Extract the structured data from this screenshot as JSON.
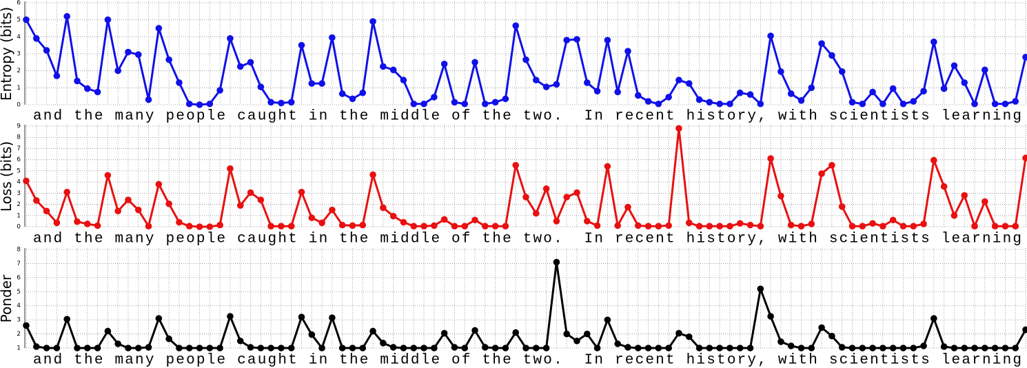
{
  "chart_data": [
    {
      "type": "line",
      "ylabel": "Entropy (bits)",
      "xlabel": "and the many people caught in the middle of the two.  In recent history, with scientists learning",
      "color": "#1010e8",
      "ylim": [
        0,
        6
      ],
      "yticks": [
        0,
        1,
        2,
        3,
        4,
        5,
        6
      ],
      "grid": true,
      "values": [
        5.0,
        3.9,
        3.2,
        1.7,
        5.2,
        1.4,
        0.95,
        0.75,
        5.0,
        2.0,
        3.1,
        2.95,
        0.3,
        4.5,
        2.65,
        1.3,
        0.05,
        0.0,
        0.05,
        0.85,
        3.9,
        2.25,
        2.5,
        1.05,
        0.15,
        0.1,
        0.15,
        3.5,
        1.25,
        1.25,
        3.95,
        0.65,
        0.35,
        0.7,
        4.9,
        2.25,
        2.05,
        1.45,
        0.05,
        0.05,
        0.45,
        2.4,
        0.15,
        0.05,
        2.5,
        0.05,
        0.15,
        0.35,
        4.65,
        2.65,
        1.45,
        1.05,
        1.2,
        3.8,
        3.85,
        1.3,
        0.8,
        3.8,
        0.75,
        3.15,
        0.55,
        0.2,
        0.05,
        0.45,
        1.45,
        1.25,
        0.3,
        0.15,
        0.05,
        0.05,
        0.7,
        0.6,
        0.05,
        4.05,
        1.95,
        0.65,
        0.25,
        1.0,
        3.6,
        2.9,
        1.95,
        0.15,
        0.05,
        0.75,
        0.05,
        0.95,
        0.05,
        0.2,
        0.8,
        3.7,
        0.95,
        2.3,
        1.3,
        0.05,
        2.05,
        0.05,
        0.05,
        0.2,
        2.8
      ]
    },
    {
      "type": "line",
      "ylabel": "Loss (bits)",
      "xlabel": "and the many people caught in the middle of the two.  In recent history, with scientists learning",
      "color": "#e81010",
      "ylim": [
        0,
        9
      ],
      "yticks": [
        0,
        1,
        2,
        3,
        4,
        5,
        6,
        7,
        8,
        9
      ],
      "grid": true,
      "values": [
        4.1,
        2.35,
        1.4,
        0.35,
        3.1,
        0.45,
        0.25,
        0.1,
        4.6,
        1.4,
        2.4,
        1.5,
        0.05,
        3.8,
        2.05,
        0.4,
        0.05,
        0.0,
        0.0,
        0.15,
        5.2,
        1.9,
        3.05,
        2.4,
        0.05,
        0.05,
        0.05,
        3.1,
        0.8,
        0.35,
        1.5,
        0.15,
        0.1,
        0.15,
        4.65,
        1.7,
        0.95,
        0.4,
        0.05,
        0.05,
        0.1,
        0.65,
        0.05,
        0.05,
        0.6,
        0.05,
        0.05,
        0.05,
        5.5,
        2.65,
        1.2,
        3.4,
        0.5,
        2.65,
        3.05,
        0.5,
        0.1,
        5.4,
        0.1,
        1.75,
        0.1,
        0.05,
        0.05,
        0.1,
        8.8,
        0.35,
        0.05,
        0.05,
        0.05,
        0.05,
        0.3,
        0.15,
        0.05,
        6.1,
        2.75,
        0.15,
        0.05,
        0.25,
        4.75,
        5.5,
        1.8,
        0.05,
        0.05,
        0.3,
        0.05,
        0.6,
        0.05,
        0.05,
        0.25,
        5.95,
        3.6,
        1.0,
        2.8,
        0.05,
        2.25,
        0.05,
        0.05,
        0.05,
        6.15
      ]
    },
    {
      "type": "line",
      "ylabel": "Ponder",
      "xlabel": "and the many people caught in the middle of the two.  In recent history, with scientists learning",
      "color": "#000000",
      "ylim": [
        1,
        8
      ],
      "yticks": [
        1,
        2,
        3,
        4,
        5,
        6,
        7,
        8
      ],
      "grid": true,
      "values": [
        2.6,
        1.1,
        1.0,
        1.0,
        3.05,
        1.0,
        1.0,
        1.0,
        2.2,
        1.3,
        1.0,
        1.0,
        1.05,
        3.1,
        1.65,
        1.0,
        1.0,
        1.0,
        1.0,
        1.0,
        3.25,
        1.5,
        1.05,
        1.0,
        1.0,
        1.0,
        1.0,
        3.2,
        1.95,
        1.0,
        3.15,
        1.0,
        1.0,
        1.0,
        2.2,
        1.35,
        1.05,
        1.0,
        1.0,
        1.0,
        1.0,
        2.05,
        1.05,
        1.0,
        2.25,
        1.05,
        1.0,
        1.0,
        2.1,
        1.0,
        1.0,
        1.0,
        7.1,
        2.0,
        1.5,
        2.0,
        1.0,
        3.0,
        1.3,
        1.05,
        1.0,
        1.0,
        1.0,
        1.0,
        2.05,
        1.8,
        1.0,
        1.0,
        1.0,
        1.0,
        1.0,
        1.0,
        5.2,
        3.25,
        1.45,
        1.15,
        1.0,
        1.0,
        2.45,
        1.85,
        1.05,
        1.0,
        1.0,
        1.0,
        1.0,
        1.0,
        1.0,
        1.0,
        1.15,
        3.1,
        1.1,
        1.0,
        1.0,
        1.0,
        1.0,
        1.0,
        1.0,
        1.0,
        2.3
      ]
    }
  ]
}
